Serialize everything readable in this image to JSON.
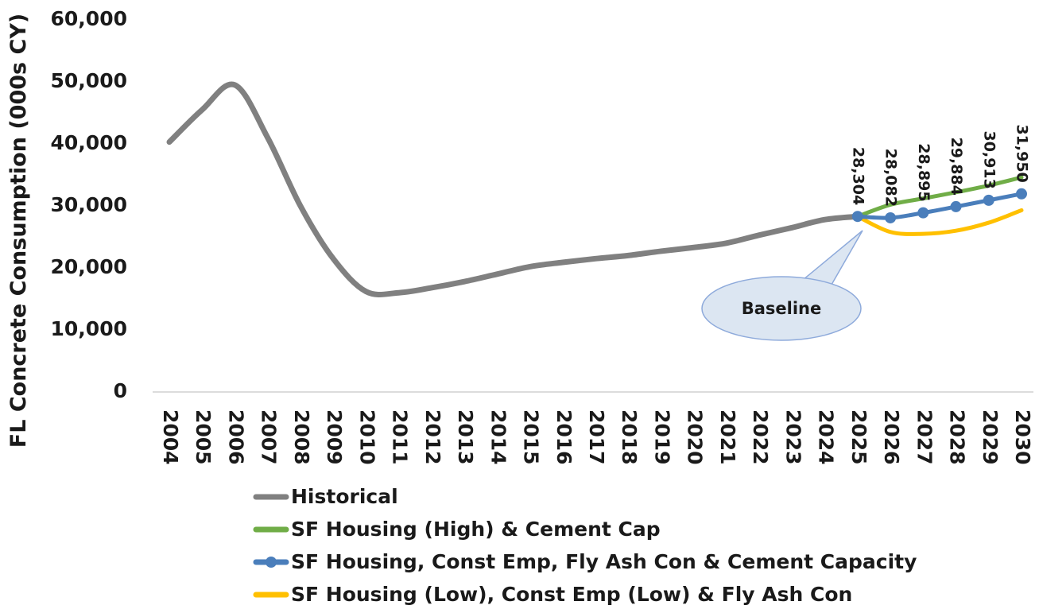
{
  "chart_data": {
    "type": "line",
    "y_label": "FL Concrete Consumption (000s CY)",
    "categories": [
      "2004",
      "2005",
      "2006",
      "2007",
      "2008",
      "2009",
      "2010",
      "2011",
      "2012",
      "2013",
      "2014",
      "2015",
      "2016",
      "2017",
      "2018",
      "2019",
      "2020",
      "2021",
      "2022",
      "2023",
      "2024",
      "2025",
      "2026",
      "2027",
      "2028",
      "2029",
      "2030"
    ],
    "ylim": [
      0,
      60000
    ],
    "yticks": [
      0,
      {
        "value": 10000,
        "label": "10,000"
      },
      {
        "value": 20000,
        "label": "20,000"
      },
      {
        "value": 30000,
        "label": "30,000"
      },
      {
        "value": 40000,
        "label": "40,000"
      },
      {
        "value": 50000,
        "label": "50,000"
      },
      {
        "value": 60000,
        "label": "60,000"
      }
    ],
    "grid": false,
    "legend": "bottom",
    "annotation": "Baseline",
    "series": [
      {
        "name": "Historical",
        "color": "#808080",
        "values": [
          40300,
          45500,
          49500,
          41000,
          30000,
          21500,
          16200,
          16000,
          16800,
          17800,
          19000,
          20200,
          20900,
          21500,
          22000,
          22700,
          23300,
          24000,
          25300,
          26500,
          27800,
          28304,
          null,
          null,
          null,
          null,
          null
        ]
      },
      {
        "name": "SF Housing (High) & Cement Cap",
        "color": "#70ad47",
        "values": [
          null,
          null,
          null,
          null,
          null,
          null,
          null,
          null,
          null,
          null,
          null,
          null,
          null,
          null,
          null,
          null,
          null,
          null,
          null,
          null,
          null,
          28304,
          30200,
          31200,
          32200,
          33300,
          34600
        ]
      },
      {
        "name": "SF Housing, Const Emp, Fly Ash Con & Cement Capacity",
        "color": "#4a7ebb",
        "marker": true,
        "values": [
          null,
          null,
          null,
          null,
          null,
          null,
          null,
          null,
          null,
          null,
          null,
          null,
          null,
          null,
          null,
          null,
          null,
          null,
          null,
          null,
          null,
          28304,
          28082,
          28895,
          29884,
          30913,
          31950
        ],
        "value_labels": [
          null,
          null,
          null,
          null,
          null,
          null,
          null,
          null,
          null,
          null,
          null,
          null,
          null,
          null,
          null,
          null,
          null,
          null,
          null,
          null,
          null,
          "28,304",
          "28,082",
          "28,895",
          "29,884",
          "30,913",
          "31,950"
        ]
      },
      {
        "name": "SF Housing (Low), Const Emp (Low) & Fly Ash Con",
        "color": "#ffc000",
        "values": [
          null,
          null,
          null,
          null,
          null,
          null,
          null,
          null,
          null,
          null,
          null,
          null,
          null,
          null,
          null,
          null,
          null,
          null,
          null,
          null,
          null,
          28304,
          25800,
          25500,
          26000,
          27300,
          29300
        ]
      }
    ]
  }
}
